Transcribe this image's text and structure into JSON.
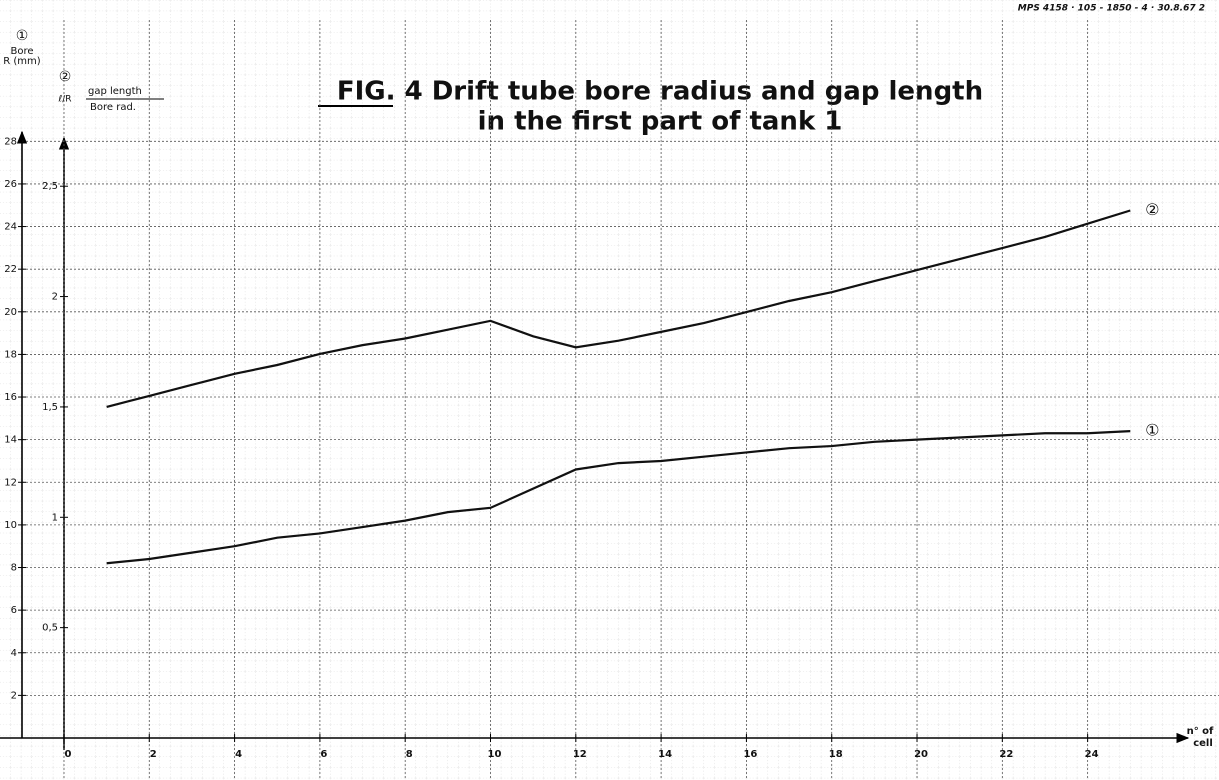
{
  "chart_data": {
    "type": "line",
    "header": "MPS 4158 · 105 - 1850 - 4 · 30.8.67 2",
    "title": "FIG. 4  Drift tube bore radius and gap length",
    "subtitle": "in the first part of tank 1",
    "y_label": [
      "①",
      "Bore",
      "R (mm)"
    ],
    "y2_label": [
      "②",
      "ℓ/R",
      "gap length",
      "Bore rad."
    ],
    "x_label": [
      "n° of",
      "cell"
    ],
    "x": [
      1,
      2,
      3,
      4,
      5,
      6,
      7,
      8,
      9,
      10,
      11,
      12,
      13,
      14,
      15,
      16,
      17,
      18,
      19,
      20,
      21,
      22,
      23,
      24,
      25
    ],
    "series": [
      {
        "name": "①",
        "color": "#111111",
        "values": [
          8.2,
          8.4,
          8.7,
          9.0,
          9.4,
          9.6,
          9.9,
          10.2,
          10.6,
          10.8,
          11.7,
          12.6,
          12.9,
          13.0,
          13.2,
          13.4,
          13.6,
          13.7,
          13.9,
          14.0,
          14.1,
          14.2,
          14.3,
          14.3,
          14.4
        ]
      },
      {
        "name": "②",
        "color": "#111111",
        "axis": "y2",
        "values": [
          1.5,
          1.55,
          1.6,
          1.65,
          1.69,
          1.74,
          1.78,
          1.81,
          1.85,
          1.89,
          1.82,
          1.77,
          1.8,
          1.84,
          1.88,
          1.93,
          1.98,
          2.02,
          2.07,
          2.12,
          2.17,
          2.22,
          2.27,
          2.33,
          2.39
        ]
      }
    ],
    "xlim": [
      -1.5,
      26.4
    ],
    "xticks": [
      0,
      2,
      4,
      6,
      8,
      10,
      12,
      14,
      16,
      18,
      20,
      22,
      24
    ],
    "ylim": [
      0,
      29
    ],
    "yticks": [
      2,
      4,
      6,
      8,
      10,
      12,
      14,
      16,
      18,
      20,
      22,
      24,
      26,
      28
    ],
    "y2lim": [
      0,
      2.8
    ],
    "y2ticks": [
      {
        "value": 0.5,
        "label": "0,5"
      },
      1,
      {
        "value": 1.5,
        "label": "1,5"
      },
      2,
      {
        "value": 2.5,
        "label": "2,5"
      }
    ],
    "grid": true
  }
}
